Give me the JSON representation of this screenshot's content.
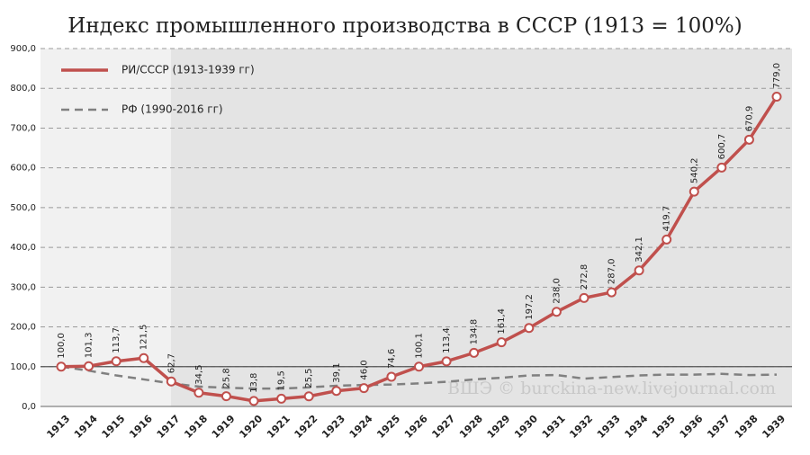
{
  "chart_data": {
    "type": "line",
    "title": "Индекс промышленного производства в СССР (1913 = 100%)",
    "categories": [
      "1913",
      "1914",
      "1915",
      "1916",
      "1917",
      "1918",
      "1919",
      "1920",
      "1921",
      "1922",
      "1923",
      "1924",
      "1925",
      "1926",
      "1927",
      "1928",
      "1929",
      "1930",
      "1931",
      "1932",
      "1933",
      "1934",
      "1935",
      "1936",
      "1937",
      "1938",
      "1939"
    ],
    "series": [
      {
        "name": "РИ/СССР (1913-1939 гг)",
        "color": "#c0504d",
        "dashed": false,
        "markers": true,
        "values": [
          100.0,
          101.3,
          113.7,
          121.5,
          62.7,
          34.5,
          25.8,
          13.8,
          19.5,
          25.5,
          39.1,
          46.0,
          74.6,
          100.1,
          113.4,
          134.8,
          161.4,
          197.2,
          238.0,
          272.8,
          287.0,
          342.1,
          419.7,
          540.2,
          600.7,
          670.9,
          779.0
        ],
        "value_labels": [
          "100,0",
          "101,3",
          "113,7",
          "121,5",
          "62,7",
          "34,5",
          "25,8",
          "13,8",
          "19,5",
          "25,5",
          "39,1",
          "46,0",
          "74,6",
          "100,1",
          "113,4",
          "134,8",
          "161,4",
          "197,2",
          "238,0",
          "272,8",
          "287,0",
          "342,1",
          "419,7",
          "540,2",
          "600,7",
          "670,9",
          "779,0"
        ]
      },
      {
        "name": "РФ (1990-2016 гг)",
        "color": "#808080",
        "dashed": true,
        "markers": false,
        "values": [
          100,
          90,
          78,
          68,
          58,
          50,
          47,
          45,
          45,
          48,
          52,
          54,
          55,
          58,
          62,
          68,
          72,
          78,
          79,
          70,
          74,
          78,
          80,
          80,
          82,
          79,
          80
        ]
      }
    ],
    "ylim": [
      0,
      900
    ],
    "yticks": [
      {
        "value": 0,
        "label": "0,0"
      },
      {
        "value": 100,
        "label": "100,0"
      },
      {
        "value": 200,
        "label": "200,0"
      },
      {
        "value": 300,
        "label": "300,0"
      },
      {
        "value": 400,
        "label": "400,0"
      },
      {
        "value": 500,
        "label": "500,0"
      },
      {
        "value": 600,
        "label": "600,0"
      },
      {
        "value": 700,
        "label": "700,0"
      },
      {
        "value": 800,
        "label": "800,0"
      },
      {
        "value": 900,
        "label": "900,0"
      }
    ],
    "reference_y": 100,
    "grid": true,
    "legend": "upper left",
    "annotation": "ВШЭ © burckina-new.livejournal.com"
  }
}
